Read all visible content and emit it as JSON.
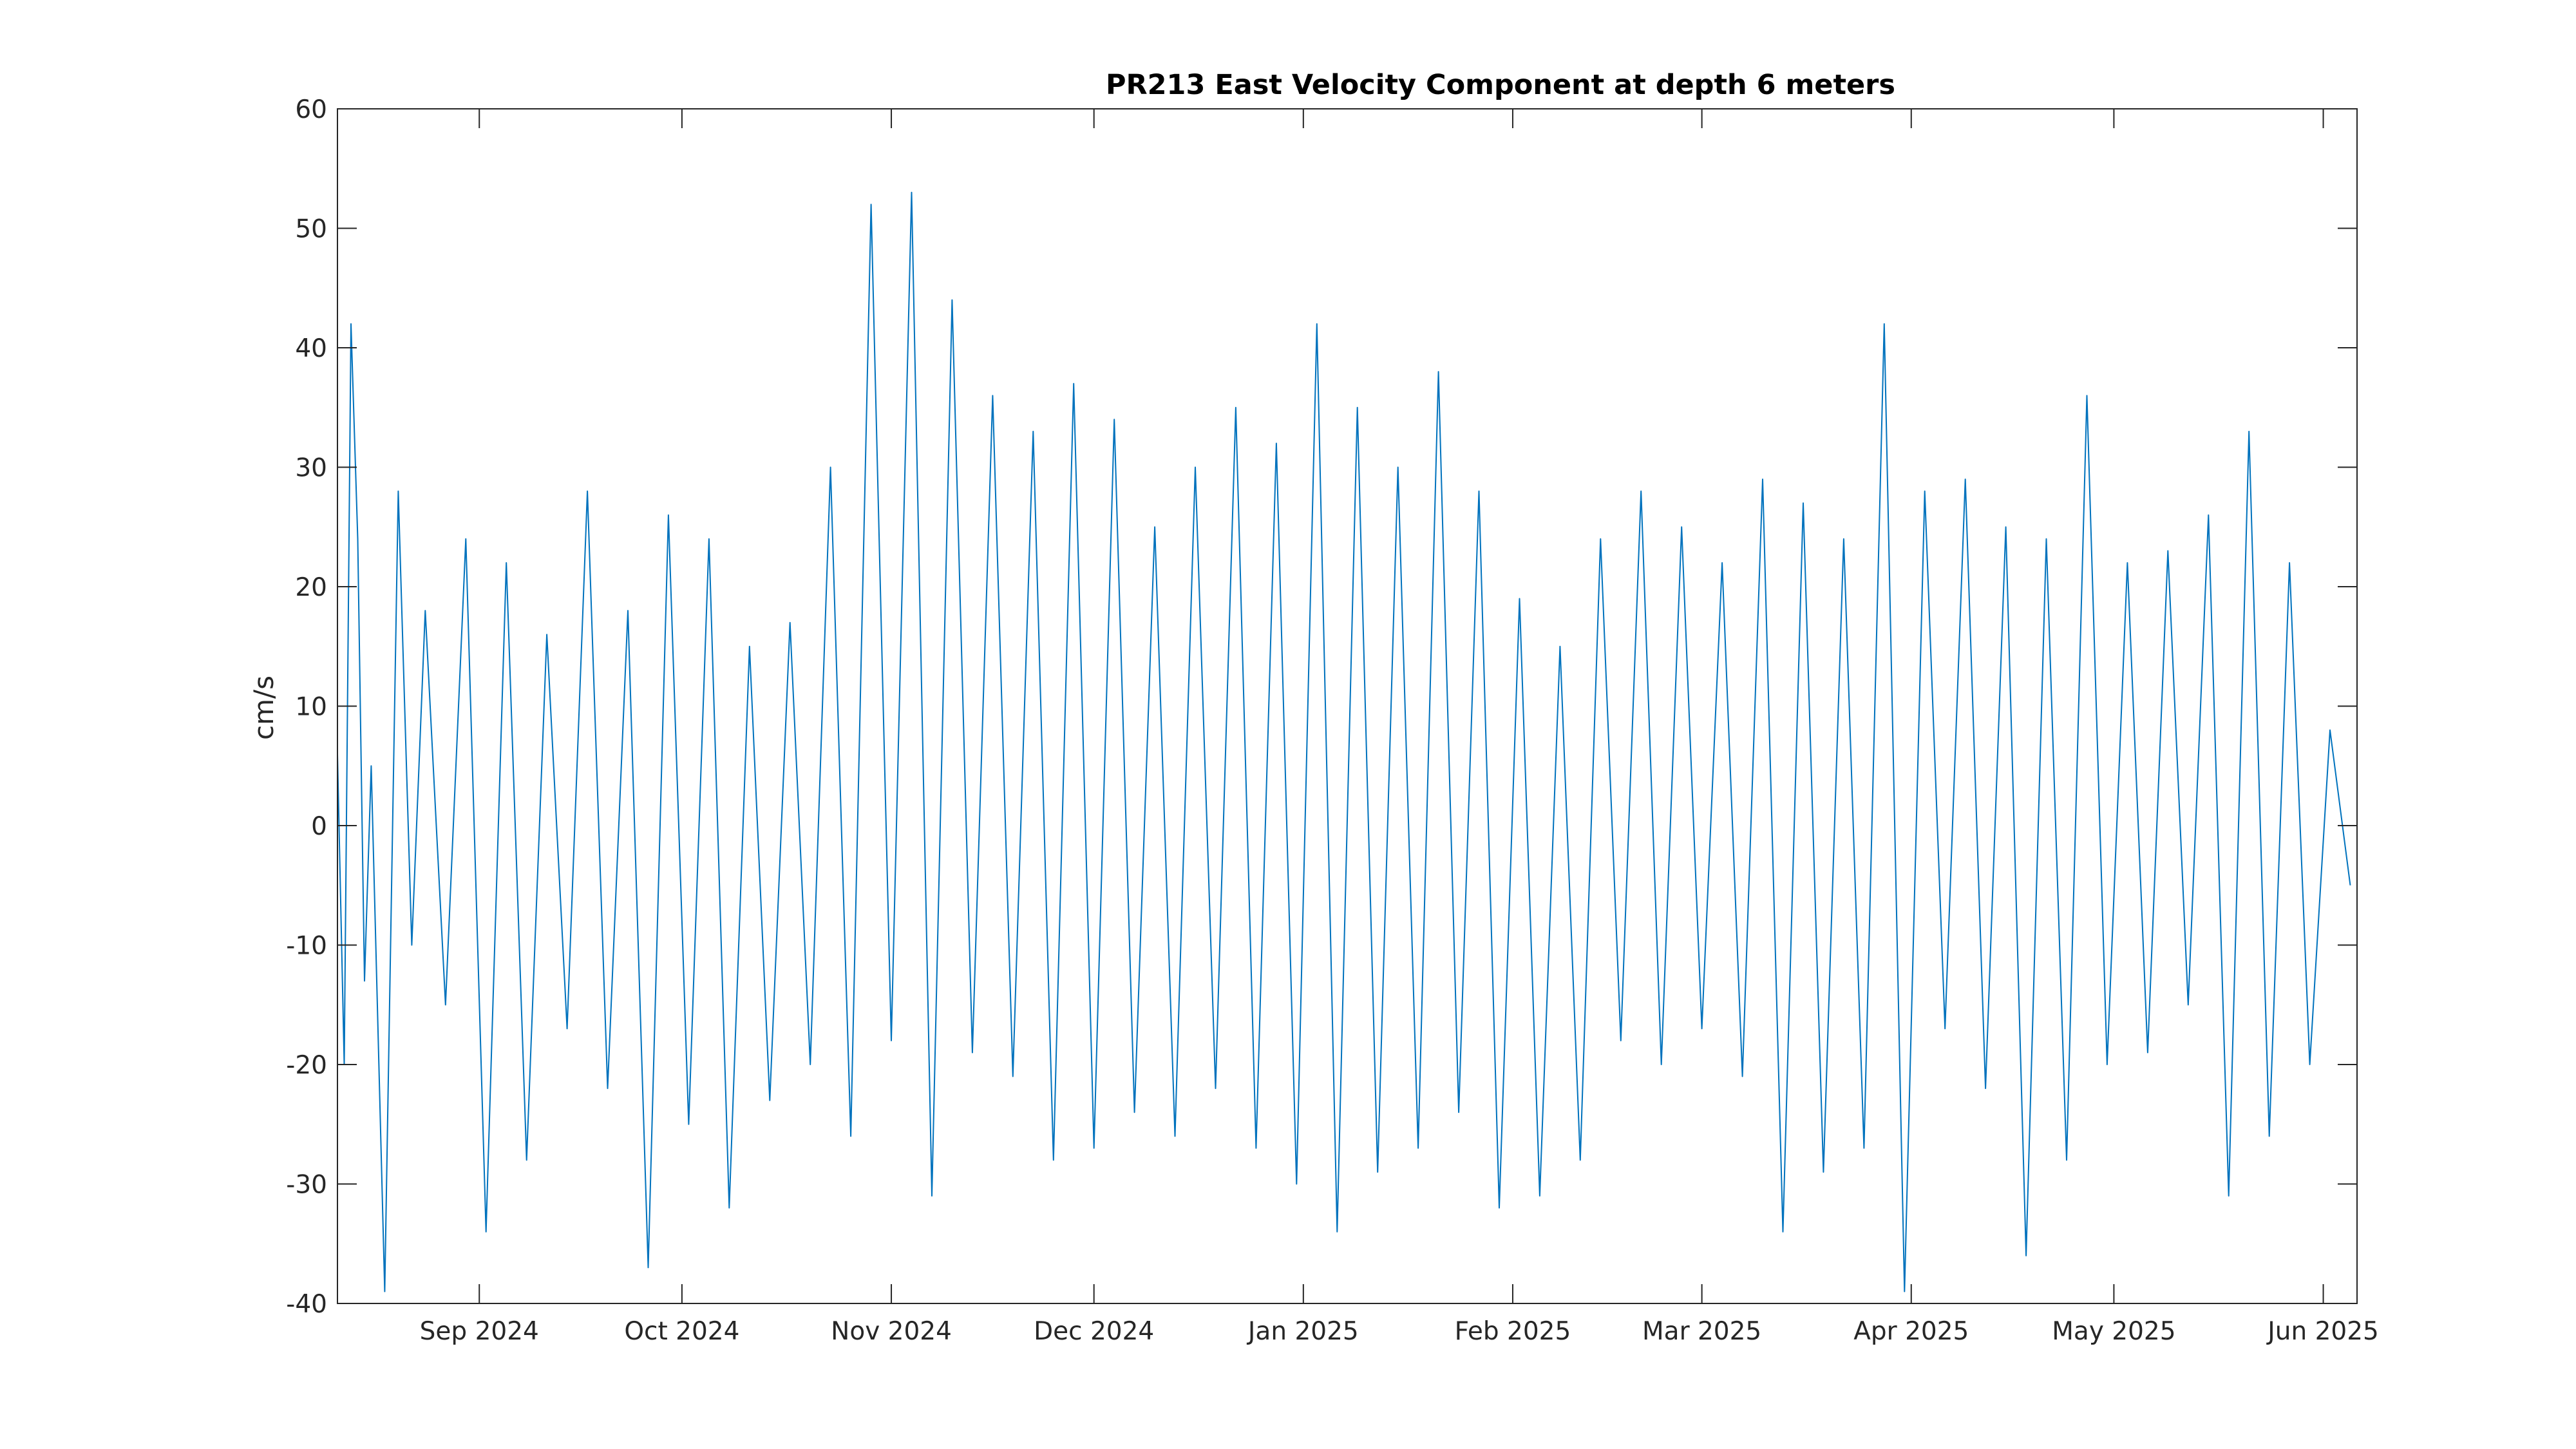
{
  "chart_data": {
    "type": "line",
    "title": "PR213 East Velocity Component at depth 6 meters",
    "xlabel": "",
    "ylabel": "cm/s",
    "xlim": [
      "2024-08-11",
      "2025-06-06"
    ],
    "ylim": [
      -40,
      60
    ],
    "yticks": [
      -40,
      -30,
      -20,
      -10,
      0,
      10,
      20,
      30,
      40,
      50,
      60
    ],
    "xticks": [
      {
        "date": "2024-09-01",
        "label": "Sep 2024"
      },
      {
        "date": "2024-10-01",
        "label": "Oct 2024"
      },
      {
        "date": "2024-11-01",
        "label": "Nov 2024"
      },
      {
        "date": "2024-12-01",
        "label": "Dec 2024"
      },
      {
        "date": "2025-01-01",
        "label": "Jan 2025"
      },
      {
        "date": "2025-02-01",
        "label": "Feb 2025"
      },
      {
        "date": "2025-03-01",
        "label": "Mar 2025"
      },
      {
        "date": "2025-04-01",
        "label": "Apr 2025"
      },
      {
        "date": "2025-05-01",
        "label": "May 2025"
      },
      {
        "date": "2025-06-01",
        "label": "Jun 2025"
      }
    ],
    "grid": false,
    "line_color": "#0072BD",
    "series": [
      {
        "x": [
          "2024-08-11",
          "2024-08-12",
          "2024-08-13",
          "2024-08-14",
          "2024-08-15",
          "2024-08-16",
          "2024-08-18",
          "2024-08-20",
          "2024-08-22",
          "2024-08-24",
          "2024-08-27",
          "2024-08-30",
          "2024-09-02",
          "2024-09-05",
          "2024-09-08",
          "2024-09-11",
          "2024-09-14",
          "2024-09-17",
          "2024-09-20",
          "2024-09-23",
          "2024-09-26",
          "2024-09-29",
          "2024-10-02",
          "2024-10-05",
          "2024-10-08",
          "2024-10-11",
          "2024-10-14",
          "2024-10-17",
          "2024-10-20",
          "2024-10-23",
          "2024-10-26",
          "2024-10-29",
          "2024-11-01",
          "2024-11-04",
          "2024-11-07",
          "2024-11-10",
          "2024-11-13",
          "2024-11-16",
          "2024-11-19",
          "2024-11-22",
          "2024-11-25",
          "2024-11-28",
          "2024-12-01",
          "2024-12-04",
          "2024-12-07",
          "2024-12-10",
          "2024-12-13",
          "2024-12-16",
          "2024-12-19",
          "2024-12-22",
          "2024-12-25",
          "2024-12-28",
          "2024-12-31",
          "2025-01-03",
          "2025-01-06",
          "2025-01-09",
          "2025-01-12",
          "2025-01-15",
          "2025-01-18",
          "2025-01-21",
          "2025-01-24",
          "2025-01-27",
          "2025-01-30",
          "2025-02-02",
          "2025-02-05",
          "2025-02-08",
          "2025-02-11",
          "2025-02-14",
          "2025-02-17",
          "2025-02-20",
          "2025-02-23",
          "2025-02-26",
          "2025-03-01",
          "2025-03-04",
          "2025-03-07",
          "2025-03-10",
          "2025-03-13",
          "2025-03-16",
          "2025-03-19",
          "2025-03-22",
          "2025-03-25",
          "2025-03-28",
          "2025-03-31",
          "2025-04-03",
          "2025-04-06",
          "2025-04-09",
          "2025-04-12",
          "2025-04-15",
          "2025-04-18",
          "2025-04-21",
          "2025-04-24",
          "2025-04-27",
          "2025-04-30",
          "2025-05-03",
          "2025-05-06",
          "2025-05-09",
          "2025-05-12",
          "2025-05-15",
          "2025-05-18",
          "2025-05-21",
          "2025-05-24",
          "2025-05-27",
          "2025-05-30",
          "2025-06-02",
          "2025-06-05"
        ],
        "y": [
          6,
          -20,
          42,
          24,
          -13,
          5,
          -39,
          28,
          -10,
          18,
          -15,
          24,
          -34,
          22,
          -28,
          16,
          -17,
          28,
          -22,
          18,
          -37,
          26,
          -25,
          24,
          -32,
          15,
          -23,
          17,
          -20,
          30,
          -26,
          52,
          -18,
          53,
          -31,
          44,
          -19,
          36,
          -21,
          33,
          -28,
          37,
          -27,
          34,
          -24,
          25,
          -26,
          30,
          -22,
          35,
          -27,
          32,
          -30,
          42,
          -34,
          35,
          -29,
          30,
          -27,
          38,
          -24,
          28,
          -32,
          19,
          -31,
          15,
          -28,
          24,
          -18,
          28,
          -20,
          25,
          -17,
          22,
          -21,
          29,
          -34,
          27,
          -29,
          24,
          -27,
          42,
          -39,
          28,
          -17,
          29,
          -22,
          25,
          -36,
          24,
          -28,
          36,
          -20,
          22,
          -19,
          23,
          -15,
          26,
          -31,
          33,
          -26,
          22,
          -20,
          8,
          -5
        ]
      }
    ]
  }
}
